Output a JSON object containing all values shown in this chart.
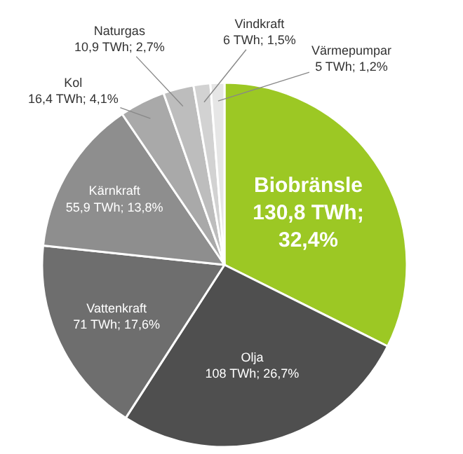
{
  "chart_data": {
    "type": "pie",
    "categories": [
      "Biobränsle",
      "Olja",
      "Vattenkraft",
      "Kärnkraft",
      "Kol",
      "Naturgas",
      "Vindkraft",
      "Värmepumpar"
    ],
    "values": [
      130.8,
      108,
      71,
      55.9,
      16.4,
      10.9,
      6,
      5
    ],
    "value_labels": [
      "130,8 TWh; 32,4%",
      "108 TWh; 26,7%",
      "71 TWh; 17,6%",
      "55,9 TWh; 13,8%",
      "16,4 TWh; 4,1%",
      "10,9 TWh; 2,7%",
      "6 TWh; 1,5%",
      "5 TWh; 1,2%"
    ],
    "colors": [
      "#9cc824",
      "#4f4f4f",
      "#6e6e6e",
      "#8e8e8e",
      "#a9a9a9",
      "#bdbdbd",
      "#d2d2d2",
      "#e6e6e6"
    ],
    "legend": false
  }
}
